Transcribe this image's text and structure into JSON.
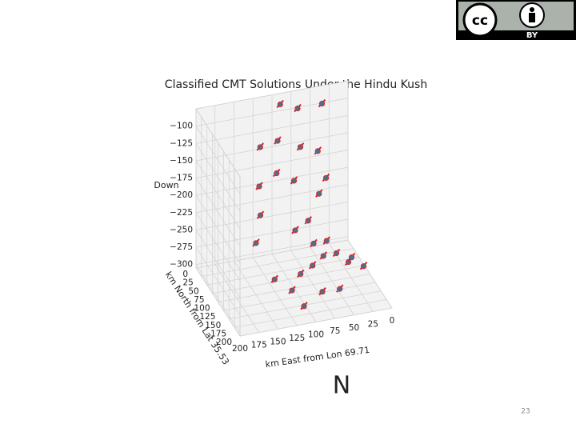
{
  "slide": {
    "letter": "N",
    "page_number": 23,
    "license_badge": {
      "symbol": "cc",
      "text": "BY"
    }
  },
  "chart_data": {
    "type": "scatter3d",
    "title": "Classified CMT Solutions Under the Hindu Kush",
    "xlabel": "km East from Lon 69.71",
    "ylabel": "km North from Lat 35.53",
    "zlabel": "Down",
    "xlim": [
      0,
      200
    ],
    "ylim": [
      0,
      200
    ],
    "zlim": [
      -305,
      -75
    ],
    "xticks": [
      0,
      25,
      50,
      75,
      100,
      125,
      150,
      175,
      200
    ],
    "yticks": [
      0,
      25,
      50,
      75,
      100,
      125,
      150,
      175,
      200
    ],
    "zticks": [
      {
        "value": -100,
        "label": "−100"
      },
      {
        "value": -125,
        "label": "−125"
      },
      {
        "value": -150,
        "label": "−150"
      },
      {
        "value": -175,
        "label": "−175"
      },
      {
        "value": -200,
        "label": "−200"
      },
      {
        "value": -225,
        "label": "−225"
      },
      {
        "value": -250,
        "label": "−250"
      },
      {
        "value": -275,
        "label": "−275"
      },
      {
        "value": -300,
        "label": "−300"
      }
    ],
    "grid": true,
    "color": "#4a6f94",
    "edge_color": "#e0201b",
    "x": [
      95,
      75,
      40,
      110,
      130,
      80,
      60,
      120,
      100,
      140,
      70,
      55,
      150,
      90,
      110,
      80,
      60,
      70,
      50,
      90,
      40,
      100,
      120,
      60,
      80,
      30,
      110,
      140,
      150,
      20
    ],
    "y": [
      20,
      30,
      20,
      60,
      50,
      60,
      70,
      90,
      100,
      80,
      110,
      90,
      120,
      130,
      140,
      120,
      110,
      130,
      120,
      150,
      140,
      130,
      160,
      170,
      160,
      120,
      180,
      150,
      100,
      140
    ],
    "z": [
      -80,
      -85,
      -90,
      -110,
      -120,
      -125,
      -130,
      -140,
      -150,
      -160,
      -170,
      -160,
      -180,
      -195,
      -200,
      -235,
      -240,
      -250,
      -255,
      -250,
      -260,
      -270,
      -275,
      -280,
      -285,
      -265,
      -290,
      -260,
      -230,
      -270
    ]
  }
}
